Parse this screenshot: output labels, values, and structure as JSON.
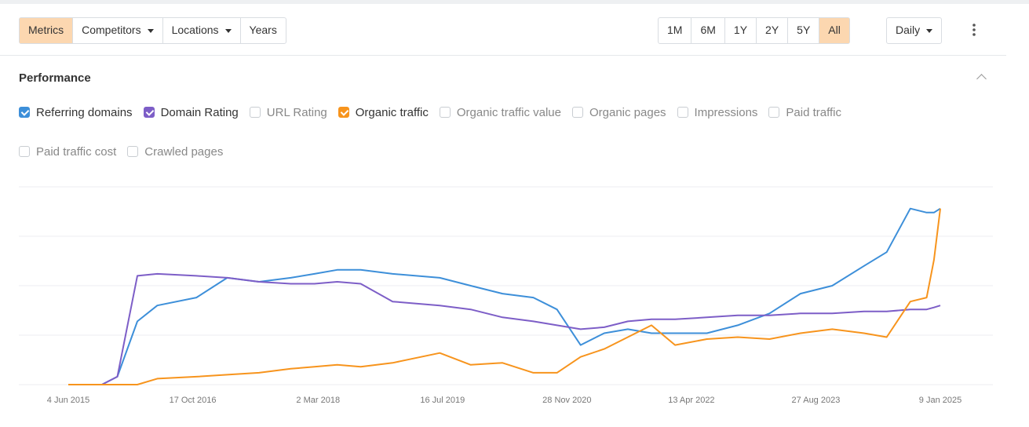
{
  "toolbar": {
    "tabs": [
      "Metrics",
      "Competitors",
      "Locations",
      "Years"
    ],
    "ranges": [
      "1M",
      "6M",
      "1Y",
      "2Y",
      "5Y",
      "All"
    ],
    "interval": "Daily"
  },
  "section": {
    "title": "Performance"
  },
  "metrics_unchecked": [
    "URL Rating",
    "Organic traffic value",
    "Organic pages",
    "Impressions",
    "Paid traffic",
    "Paid traffic cost",
    "Crawled pages"
  ],
  "chart_data": {
    "type": "line",
    "x": [
      2015.42,
      2015.79,
      2015.96,
      2016.18,
      2016.4,
      2016.83,
      2017.17,
      2017.52,
      2017.87,
      2018.13,
      2018.38,
      2018.64,
      2018.99,
      2019.51,
      2019.85,
      2020.2,
      2020.54,
      2020.8,
      2021.06,
      2021.32,
      2021.58,
      2021.84,
      2022.1,
      2022.45,
      2022.79,
      2023.14,
      2023.48,
      2023.83,
      2024.18,
      2024.43,
      2024.69,
      2024.87,
      2024.95,
      2025.02
    ],
    "xlim": [
      2015.42,
      2025.02
    ],
    "xticks": [
      {
        "value": 2015.42,
        "label": "4 Jun 2015"
      },
      {
        "value": 2016.79,
        "label": "17 Oct 2016"
      },
      {
        "value": 2018.17,
        "label": "2 Mar 2018"
      },
      {
        "value": 2019.54,
        "label": "16 Jul 2019"
      },
      {
        "value": 2020.91,
        "label": "28 Nov 2020"
      },
      {
        "value": 2022.28,
        "label": "13 Apr 2022"
      },
      {
        "value": 2023.65,
        "label": "27 Aug 2023"
      },
      {
        "value": 2025.02,
        "label": "9 Jan 2025"
      }
    ],
    "ylim": [
      0,
      100
    ],
    "series": [
      {
        "name": "Referring domains",
        "color": "#3d8fd9",
        "values": [
          null,
          0,
          4,
          32,
          40,
          44,
          54,
          52,
          54,
          56,
          58,
          58,
          56,
          54,
          50,
          46,
          44,
          38,
          20,
          26,
          28,
          26,
          26,
          26,
          30,
          36,
          46,
          50,
          60,
          67,
          89,
          87,
          87,
          89
        ]
      },
      {
        "name": "Domain Rating",
        "color": "#7d5ec7",
        "values": [
          null,
          0,
          4,
          55,
          56,
          55,
          54,
          52,
          51,
          51,
          52,
          51,
          42,
          40,
          38,
          34,
          32,
          30,
          28,
          29,
          32,
          33,
          33,
          34,
          35,
          35,
          36,
          36,
          37,
          37,
          38,
          38,
          39,
          40
        ]
      },
      {
        "name": "Organic traffic",
        "color": "#f7941d",
        "values": [
          0,
          0,
          0,
          0,
          3,
          4,
          5,
          6,
          8,
          9,
          10,
          9,
          11,
          16,
          10,
          11,
          6,
          6,
          14,
          18,
          24,
          30,
          20,
          23,
          24,
          23,
          26,
          28,
          26,
          24,
          42,
          44,
          63,
          89
        ]
      }
    ]
  }
}
